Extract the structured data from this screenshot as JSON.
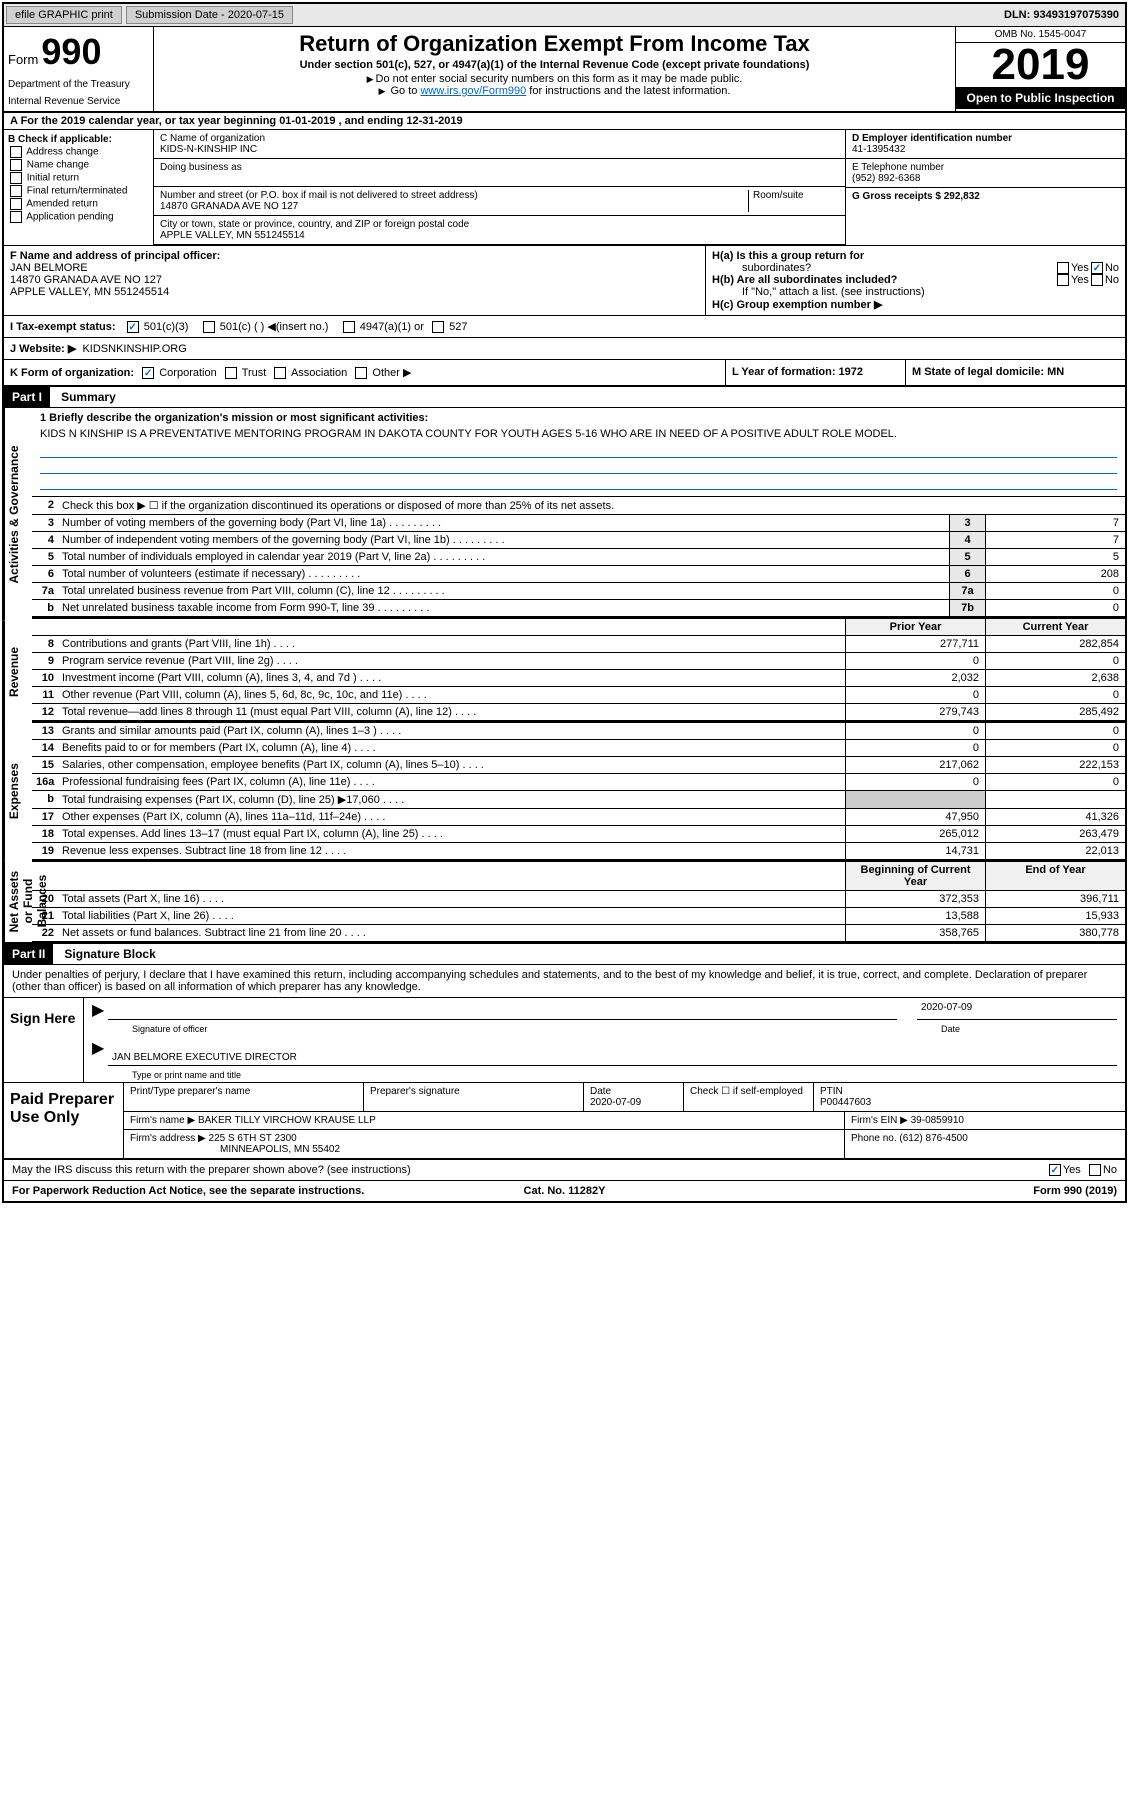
{
  "topbar": {
    "efile": "efile GRAPHIC print",
    "submission_label": "Submission Date - 2020-07-15",
    "dln": "DLN: 93493197075390"
  },
  "header": {
    "form_label": "Form",
    "form_number": "990",
    "dept": "Department of the Treasury",
    "irs": "Internal Revenue Service",
    "main_title": "Return of Organization Exempt From Income Tax",
    "subtitle": "Under section 501(c), 527, or 4947(a)(1) of the Internal Revenue Code (except private foundations)",
    "instr1": "Do not enter social security numbers on this form as it may be made public.",
    "instr2_pre": "Go to ",
    "instr2_link": "www.irs.gov/Form990",
    "instr2_post": " for instructions and the latest information.",
    "omb": "OMB No. 1545-0047",
    "year": "2019",
    "open_public": "Open to Public Inspection"
  },
  "row_a": "A For the 2019 calendar year, or tax year beginning 01-01-2019    , and ending 12-31-2019",
  "col_b": {
    "title": "B Check if applicable:",
    "items": [
      "Address change",
      "Name change",
      "Initial return",
      "Final return/terminated",
      "Amended return",
      "Application pending"
    ]
  },
  "col_c": {
    "name_label": "C Name of organization",
    "name": "KIDS-N-KINSHIP INC",
    "dba_label": "Doing business as",
    "dba": "",
    "addr_label": "Number and street (or P.O. box if mail is not delivered to street address)",
    "room_label": "Room/suite",
    "addr": "14870 GRANADA AVE NO 127",
    "city_label": "City or town, state or province, country, and ZIP or foreign postal code",
    "city": "APPLE VALLEY, MN  551245514"
  },
  "col_de": {
    "d_label": "D Employer identification number",
    "d_val": "41-1395432",
    "e_label": "E Telephone number",
    "e_val": "(952) 892-6368",
    "g_label": "G Gross receipts $ 292,832"
  },
  "row_f": {
    "f_label": "F  Name and address of principal officer:",
    "f_name": "JAN BELMORE",
    "f_addr1": "14870 GRANADA AVE NO 127",
    "f_addr2": "APPLE VALLEY, MN  551245514"
  },
  "row_h": {
    "ha_label": "H(a)  Is this a group return for",
    "ha_sub": "subordinates?",
    "hb_label": "H(b)  Are all subordinates included?",
    "hb_note": "If \"No,\" attach a list. (see instructions)",
    "hc_label": "H(c)  Group exemption number ▶",
    "yes": "Yes",
    "no": "No"
  },
  "row_i": {
    "label": "I   Tax-exempt status:",
    "opt1": "501(c)(3)",
    "opt2": "501(c) (  ) ◀(insert no.)",
    "opt3": "4947(a)(1) or",
    "opt4": "527"
  },
  "row_j": {
    "label": "J   Website: ▶",
    "val": "KIDSNKINSHIP.ORG"
  },
  "row_k": {
    "label": "K Form of organization:",
    "opts": [
      "Corporation",
      "Trust",
      "Association",
      "Other ▶"
    ],
    "l_label": "L Year of formation: 1972",
    "m_label": "M State of legal domicile: MN"
  },
  "part1": {
    "header": "Part I",
    "title": "Summary",
    "side_labels": [
      "Activities & Governance",
      "Revenue",
      "Expenses",
      "Net Assets or Fund Balances"
    ],
    "mission_label": "1  Briefly describe the organization's mission or most significant activities:",
    "mission": "KIDS N KINSHIP IS A PREVENTATIVE MENTORING PROGRAM IN DAKOTA COUNTY FOR YOUTH AGES 5-16 WHO ARE IN NEED OF A POSITIVE ADULT ROLE MODEL.",
    "line2": "Check this box ▶ ☐  if the organization discontinued its operations or disposed of more than 25% of its net assets.",
    "gov_rows": [
      {
        "n": "3",
        "label": "Number of voting members of the governing body (Part VI, line 1a)",
        "box": "3",
        "val": "7"
      },
      {
        "n": "4",
        "label": "Number of independent voting members of the governing body (Part VI, line 1b)",
        "box": "4",
        "val": "7"
      },
      {
        "n": "5",
        "label": "Total number of individuals employed in calendar year 2019 (Part V, line 2a)",
        "box": "5",
        "val": "5"
      },
      {
        "n": "6",
        "label": "Total number of volunteers (estimate if necessary)",
        "box": "6",
        "val": "208"
      },
      {
        "n": "7a",
        "label": "Total unrelated business revenue from Part VIII, column (C), line 12",
        "box": "7a",
        "val": "0"
      },
      {
        "n": "b",
        "label": "Net unrelated business taxable income from Form 990-T, line 39",
        "box": "7b",
        "val": "0"
      }
    ],
    "col_headers": {
      "prior": "Prior Year",
      "current": "Current Year",
      "begin": "Beginning of Current Year",
      "end": "End of Year"
    },
    "rev_rows": [
      {
        "n": "8",
        "label": "Contributions and grants (Part VIII, line 1h)",
        "p": "277,711",
        "c": "282,854"
      },
      {
        "n": "9",
        "label": "Program service revenue (Part VIII, line 2g)",
        "p": "0",
        "c": "0"
      },
      {
        "n": "10",
        "label": "Investment income (Part VIII, column (A), lines 3, 4, and 7d )",
        "p": "2,032",
        "c": "2,638"
      },
      {
        "n": "11",
        "label": "Other revenue (Part VIII, column (A), lines 5, 6d, 8c, 9c, 10c, and 11e)",
        "p": "0",
        "c": "0"
      },
      {
        "n": "12",
        "label": "Total revenue—add lines 8 through 11 (must equal Part VIII, column (A), line 12)",
        "p": "279,743",
        "c": "285,492"
      }
    ],
    "exp_rows": [
      {
        "n": "13",
        "label": "Grants and similar amounts paid (Part IX, column (A), lines 1–3 )",
        "p": "0",
        "c": "0"
      },
      {
        "n": "14",
        "label": "Benefits paid to or for members (Part IX, column (A), line 4)",
        "p": "0",
        "c": "0"
      },
      {
        "n": "15",
        "label": "Salaries, other compensation, employee benefits (Part IX, column (A), lines 5–10)",
        "p": "217,062",
        "c": "222,153"
      },
      {
        "n": "16a",
        "label": "Professional fundraising fees (Part IX, column (A), line 11e)",
        "p": "0",
        "c": "0"
      },
      {
        "n": "b",
        "label": "Total fundraising expenses (Part IX, column (D), line 25) ▶17,060",
        "p": "",
        "c": "",
        "shaded": true
      },
      {
        "n": "17",
        "label": "Other expenses (Part IX, column (A), lines 11a–11d, 11f–24e)",
        "p": "47,950",
        "c": "41,326"
      },
      {
        "n": "18",
        "label": "Total expenses. Add lines 13–17 (must equal Part IX, column (A), line 25)",
        "p": "265,012",
        "c": "263,479"
      },
      {
        "n": "19",
        "label": "Revenue less expenses. Subtract line 18 from line 12",
        "p": "14,731",
        "c": "22,013"
      }
    ],
    "net_rows": [
      {
        "n": "20",
        "label": "Total assets (Part X, line 16)",
        "p": "372,353",
        "c": "396,711"
      },
      {
        "n": "21",
        "label": "Total liabilities (Part X, line 26)",
        "p": "13,588",
        "c": "15,933"
      },
      {
        "n": "22",
        "label": "Net assets or fund balances. Subtract line 21 from line 20",
        "p": "358,765",
        "c": "380,778"
      }
    ]
  },
  "part2": {
    "header": "Part II",
    "title": "Signature Block",
    "intro": "Under penalties of perjury, I declare that I have examined this return, including accompanying schedules and statements, and to the best of my knowledge and belief, it is true, correct, and complete. Declaration of preparer (other than officer) is based on all information of which preparer has any knowledge.",
    "sign_here": "Sign Here",
    "sig_officer_label": "Signature of officer",
    "sig_date": "2020-07-09",
    "sig_date_label": "Date",
    "sig_name": "JAN BELMORE  EXECUTIVE DIRECTOR",
    "sig_name_label": "Type or print name and title",
    "paid_label": "Paid Preparer Use Only",
    "prep_headers": {
      "name": "Print/Type preparer's name",
      "sig": "Preparer's signature",
      "date": "Date",
      "check": "Check ☐ if self-employed",
      "ptin": "PTIN"
    },
    "prep_date": "2020-07-09",
    "prep_ptin": "P00447603",
    "firm_name_label": "Firm's name      ▶",
    "firm_name": "BAKER TILLY VIRCHOW KRAUSE LLP",
    "firm_ein_label": "Firm's EIN ▶",
    "firm_ein": "39-0859910",
    "firm_addr_label": "Firm's address ▶",
    "firm_addr1": "225 S 6TH ST 2300",
    "firm_addr2": "MINNEAPOLIS, MN  55402",
    "firm_phone_label": "Phone no.",
    "firm_phone": "(612) 876-4500",
    "irs_q": "May the IRS discuss this return with the preparer shown above? (see instructions)",
    "yes": "Yes",
    "no": "No"
  },
  "footer": {
    "left": "For Paperwork Reduction Act Notice, see the separate instructions.",
    "mid": "Cat. No. 11282Y",
    "right": "Form 990 (2019)"
  }
}
